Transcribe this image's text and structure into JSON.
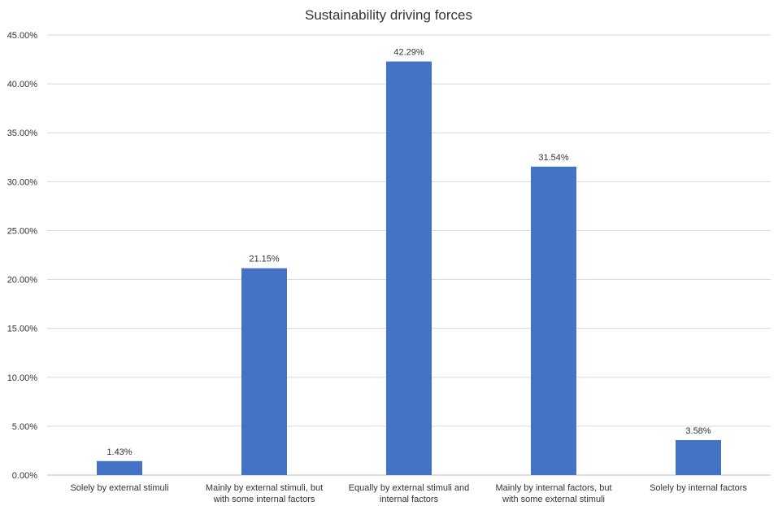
{
  "chart_data": {
    "type": "bar",
    "title": "Sustainability driving forces",
    "xlabel": "",
    "ylabel": "",
    "ylim": [
      0,
      45
    ],
    "y_tick_labels": [
      "0.00%",
      "5.00%",
      "10.00%",
      "15.00%",
      "20.00%",
      "25.00%",
      "30.00%",
      "35.00%",
      "40.00%",
      "45.00%"
    ],
    "y_ticks": [
      0,
      5,
      10,
      15,
      20,
      25,
      30,
      35,
      40,
      45
    ],
    "categories": [
      [
        "Solely by external stimuli"
      ],
      [
        "Mainly by external stimuli, but",
        "with some internal factors"
      ],
      [
        "Equally by external stimuli and",
        "internal factors"
      ],
      [
        "Mainly by internal factors, but",
        "with some external stimuli"
      ],
      [
        "Solely by internal factors"
      ]
    ],
    "values": [
      1.43,
      21.15,
      42.29,
      31.54,
      3.58
    ],
    "data_labels": [
      "1.43%",
      "21.15%",
      "42.29%",
      "31.54%",
      "3.58%"
    ],
    "grid": true,
    "legend": "none",
    "bar_color": "#4472C4"
  }
}
